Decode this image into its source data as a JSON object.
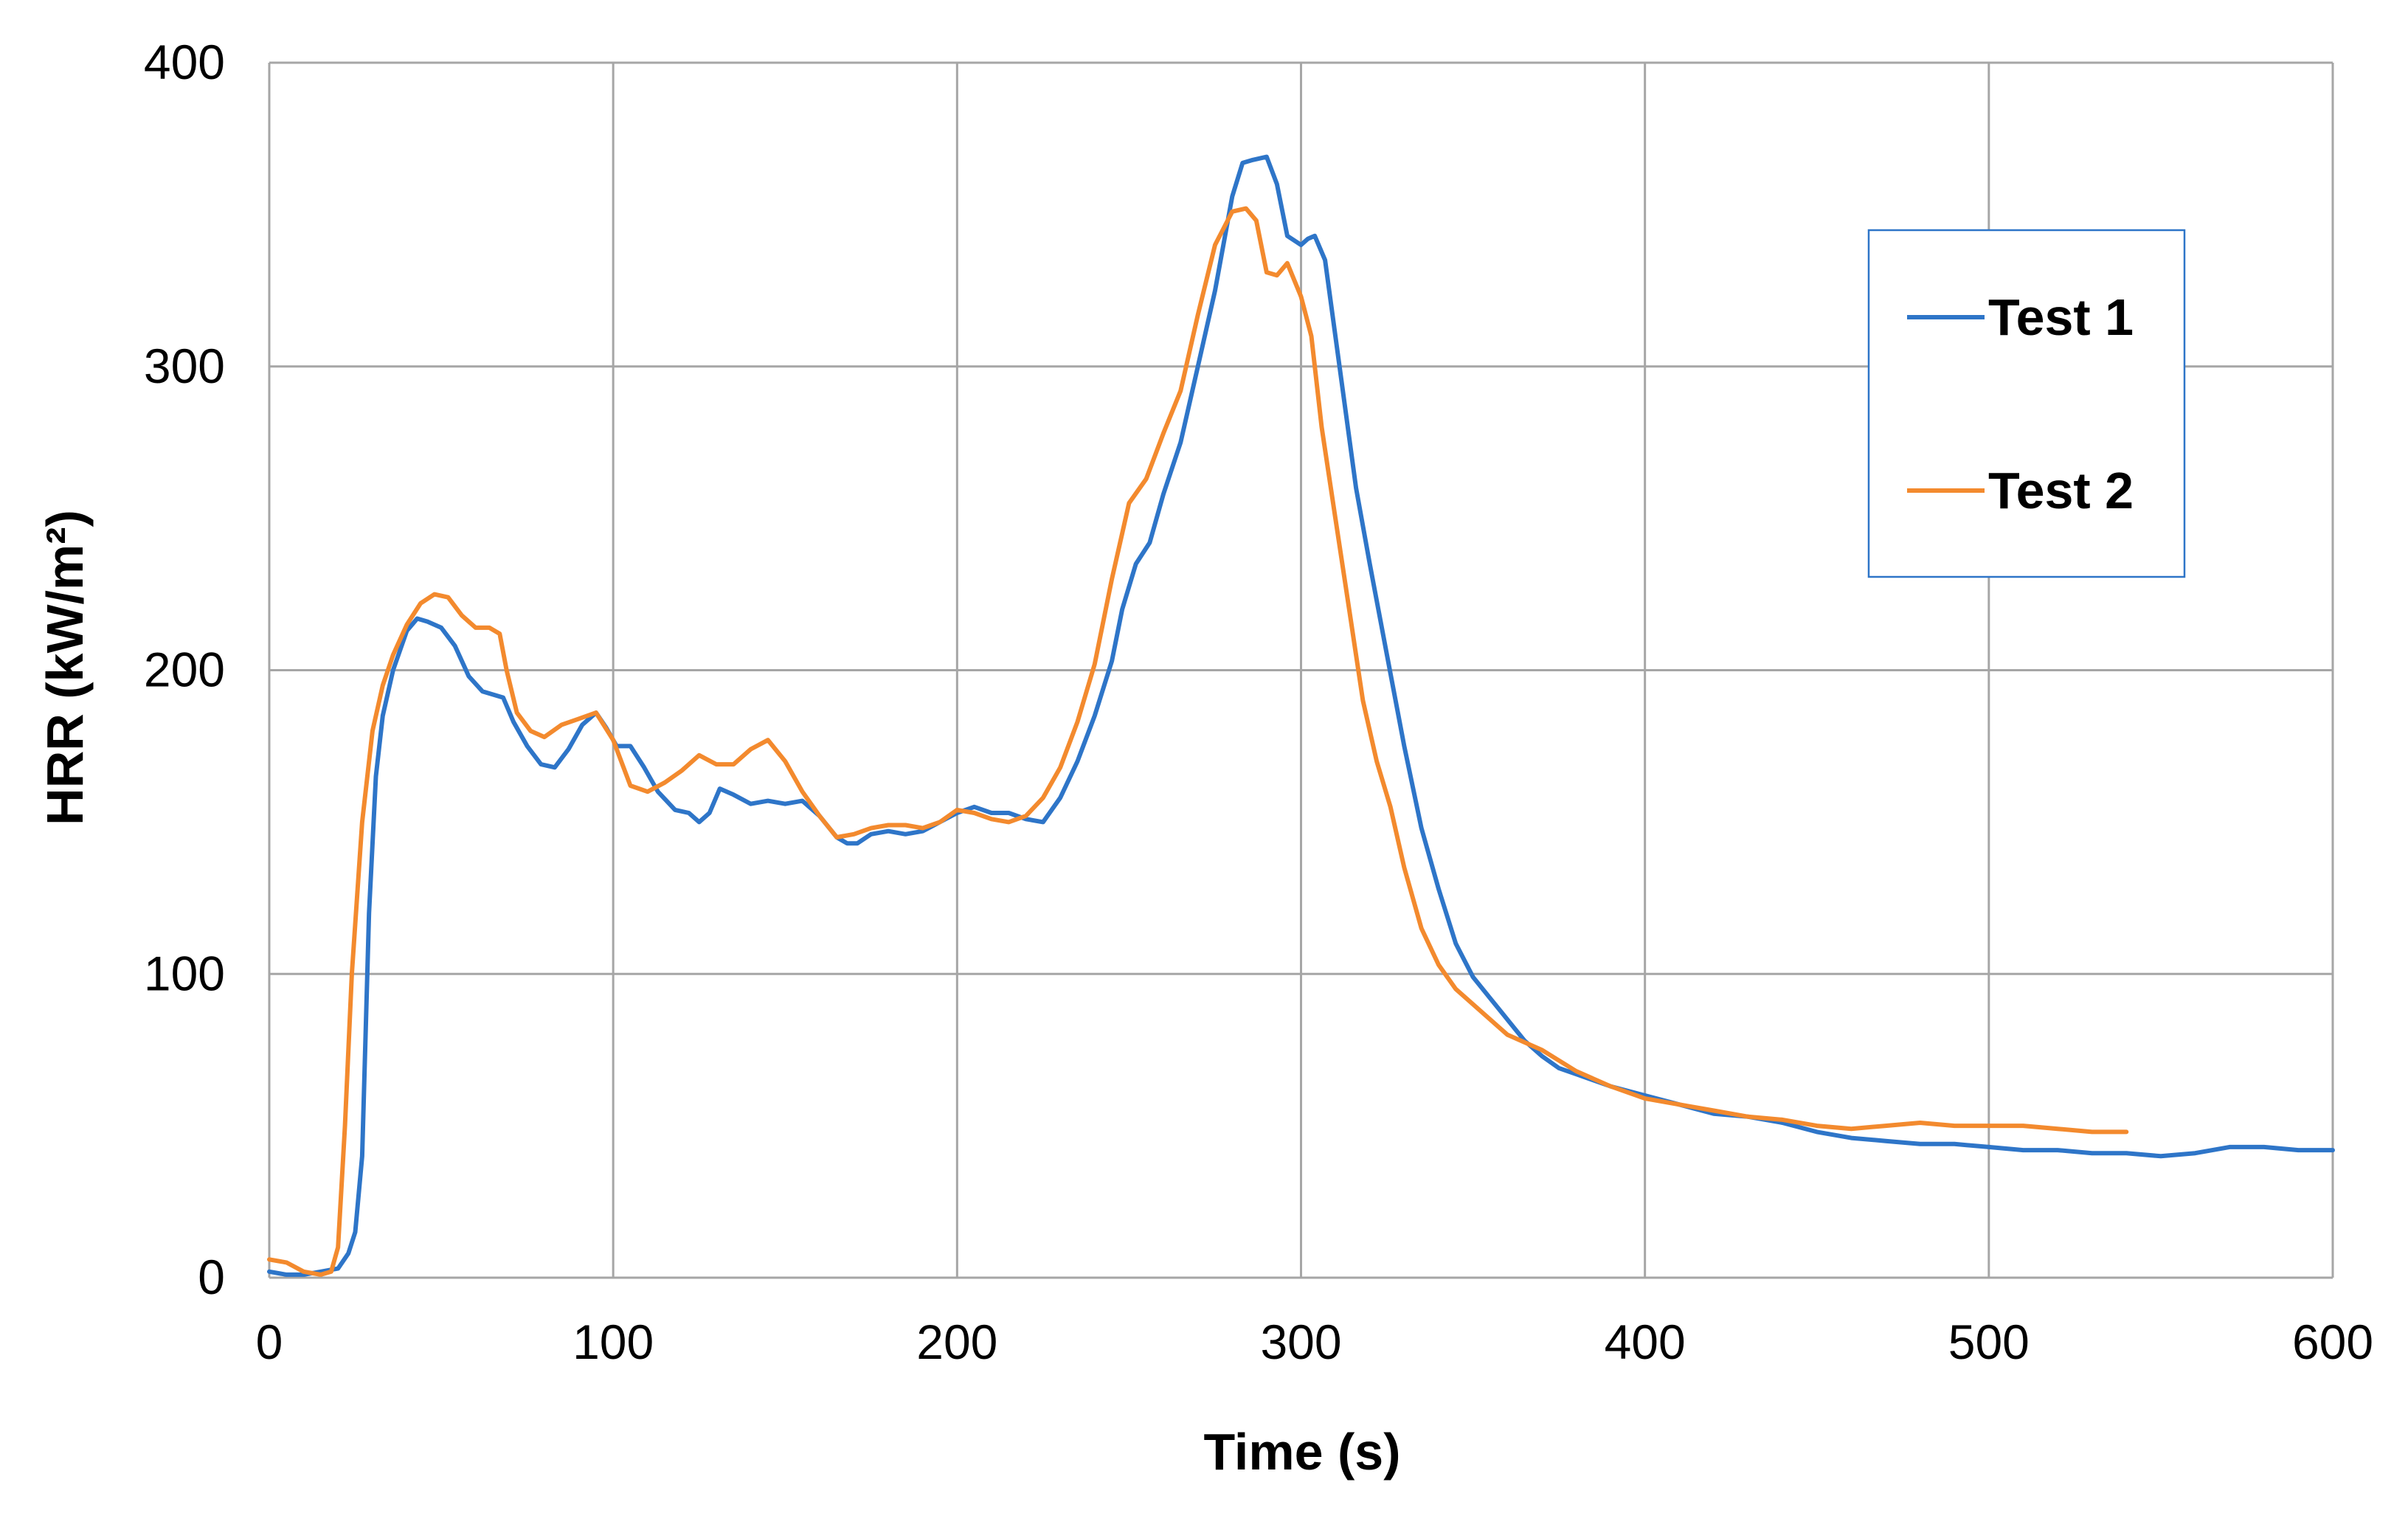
{
  "chart_data": {
    "type": "line",
    "title": "",
    "xlabel": "Time (s)",
    "ylabel": "HRR (kW/m²)",
    "xlim": [
      0,
      600
    ],
    "ylim": [
      0,
      400
    ],
    "xticks": [
      0,
      100,
      200,
      300,
      400,
      500,
      600
    ],
    "yticks": [
      0,
      100,
      200,
      300,
      400
    ],
    "x_tick_labels": [
      "0",
      "100",
      "200",
      "300",
      "400",
      "500",
      "600"
    ],
    "y_tick_labels": [
      "0",
      "100",
      "200",
      "300",
      "400"
    ],
    "grid": true,
    "legend_position": "top-right",
    "series": [
      {
        "name": "Test 1",
        "color": "#2e75c8",
        "points": [
          [
            0,
            2
          ],
          [
            5,
            1
          ],
          [
            10,
            1
          ],
          [
            15,
            2
          ],
          [
            20,
            3
          ],
          [
            23,
            8
          ],
          [
            25,
            15
          ],
          [
            27,
            40
          ],
          [
            29,
            120
          ],
          [
            31,
            165
          ],
          [
            33,
            185
          ],
          [
            36,
            200
          ],
          [
            40,
            213
          ],
          [
            43,
            217
          ],
          [
            46,
            216
          ],
          [
            50,
            214
          ],
          [
            54,
            208
          ],
          [
            58,
            198
          ],
          [
            62,
            193
          ],
          [
            68,
            191
          ],
          [
            71,
            183
          ],
          [
            75,
            175
          ],
          [
            79,
            169
          ],
          [
            83,
            168
          ],
          [
            87,
            174
          ],
          [
            91,
            182
          ],
          [
            95,
            186
          ],
          [
            98,
            181
          ],
          [
            101,
            175
          ],
          [
            105,
            175
          ],
          [
            109,
            168
          ],
          [
            113,
            160
          ],
          [
            118,
            154
          ],
          [
            122,
            153
          ],
          [
            125,
            150
          ],
          [
            128,
            153
          ],
          [
            131,
            161
          ],
          [
            135,
            159
          ],
          [
            140,
            156
          ],
          [
            145,
            157
          ],
          [
            150,
            156
          ],
          [
            155,
            157
          ],
          [
            160,
            152
          ],
          [
            165,
            145
          ],
          [
            168,
            143
          ],
          [
            171,
            143
          ],
          [
            175,
            146
          ],
          [
            180,
            147
          ],
          [
            185,
            146
          ],
          [
            190,
            147
          ],
          [
            195,
            150
          ],
          [
            200,
            153
          ],
          [
            205,
            155
          ],
          [
            210,
            153
          ],
          [
            215,
            153
          ],
          [
            220,
            151
          ],
          [
            225,
            150
          ],
          [
            230,
            158
          ],
          [
            235,
            170
          ],
          [
            240,
            185
          ],
          [
            245,
            203
          ],
          [
            248,
            220
          ],
          [
            252,
            235
          ],
          [
            256,
            242
          ],
          [
            260,
            258
          ],
          [
            265,
            275
          ],
          [
            270,
            300
          ],
          [
            275,
            325
          ],
          [
            280,
            356
          ],
          [
            283,
            367
          ],
          [
            286,
            368
          ],
          [
            290,
            369
          ],
          [
            293,
            360
          ],
          [
            296,
            343
          ],
          [
            300,
            340
          ],
          [
            302,
            342
          ],
          [
            304,
            343
          ],
          [
            307,
            335
          ],
          [
            310,
            310
          ],
          [
            313,
            285
          ],
          [
            316,
            260
          ],
          [
            320,
            235
          ],
          [
            325,
            205
          ],
          [
            330,
            175
          ],
          [
            335,
            148
          ],
          [
            340,
            128
          ],
          [
            345,
            110
          ],
          [
            350,
            99
          ],
          [
            355,
            92
          ],
          [
            360,
            85
          ],
          [
            365,
            78
          ],
          [
            370,
            73
          ],
          [
            375,
            69
          ],
          [
            380,
            67
          ],
          [
            390,
            63
          ],
          [
            400,
            60
          ],
          [
            410,
            57
          ],
          [
            420,
            54
          ],
          [
            430,
            53
          ],
          [
            440,
            51
          ],
          [
            450,
            48
          ],
          [
            460,
            46
          ],
          [
            470,
            45
          ],
          [
            480,
            44
          ],
          [
            490,
            44
          ],
          [
            500,
            43
          ],
          [
            510,
            42
          ],
          [
            520,
            42
          ],
          [
            530,
            41
          ],
          [
            540,
            41
          ],
          [
            550,
            40
          ],
          [
            560,
            41
          ],
          [
            570,
            43
          ],
          [
            580,
            43
          ],
          [
            590,
            42
          ],
          [
            600,
            42
          ]
        ]
      },
      {
        "name": "Test 2",
        "color": "#f38a2e",
        "points": [
          [
            0,
            6
          ],
          [
            5,
            5
          ],
          [
            10,
            2
          ],
          [
            15,
            1
          ],
          [
            18,
            2
          ],
          [
            20,
            10
          ],
          [
            22,
            50
          ],
          [
            24,
            100
          ],
          [
            27,
            150
          ],
          [
            30,
            180
          ],
          [
            33,
            195
          ],
          [
            36,
            205
          ],
          [
            40,
            215
          ],
          [
            44,
            222
          ],
          [
            48,
            225
          ],
          [
            52,
            224
          ],
          [
            56,
            218
          ],
          [
            60,
            214
          ],
          [
            64,
            214
          ],
          [
            67,
            212
          ],
          [
            69,
            200
          ],
          [
            72,
            186
          ],
          [
            76,
            180
          ],
          [
            80,
            178
          ],
          [
            85,
            182
          ],
          [
            90,
            184
          ],
          [
            95,
            186
          ],
          [
            100,
            177
          ],
          [
            105,
            162
          ],
          [
            110,
            160
          ],
          [
            115,
            163
          ],
          [
            120,
            167
          ],
          [
            125,
            172
          ],
          [
            130,
            169
          ],
          [
            135,
            169
          ],
          [
            140,
            174
          ],
          [
            145,
            177
          ],
          [
            150,
            170
          ],
          [
            155,
            160
          ],
          [
            160,
            152
          ],
          [
            165,
            145
          ],
          [
            170,
            146
          ],
          [
            175,
            148
          ],
          [
            180,
            149
          ],
          [
            185,
            149
          ],
          [
            190,
            148
          ],
          [
            195,
            150
          ],
          [
            200,
            154
          ],
          [
            205,
            153
          ],
          [
            210,
            151
          ],
          [
            215,
            150
          ],
          [
            220,
            152
          ],
          [
            225,
            158
          ],
          [
            230,
            168
          ],
          [
            235,
            183
          ],
          [
            240,
            202
          ],
          [
            245,
            230
          ],
          [
            250,
            255
          ],
          [
            255,
            263
          ],
          [
            260,
            278
          ],
          [
            265,
            292
          ],
          [
            270,
            317
          ],
          [
            275,
            340
          ],
          [
            280,
            351
          ],
          [
            284,
            352
          ],
          [
            287,
            348
          ],
          [
            290,
            331
          ],
          [
            293,
            330
          ],
          [
            296,
            334
          ],
          [
            300,
            323
          ],
          [
            303,
            310
          ],
          [
            306,
            280
          ],
          [
            310,
            250
          ],
          [
            314,
            220
          ],
          [
            318,
            190
          ],
          [
            322,
            170
          ],
          [
            326,
            155
          ],
          [
            330,
            135
          ],
          [
            335,
            115
          ],
          [
            340,
            103
          ],
          [
            345,
            95
          ],
          [
            350,
            90
          ],
          [
            355,
            85
          ],
          [
            360,
            80
          ],
          [
            370,
            75
          ],
          [
            380,
            68
          ],
          [
            390,
            63
          ],
          [
            400,
            59
          ],
          [
            410,
            57
          ],
          [
            420,
            55
          ],
          [
            430,
            53
          ],
          [
            440,
            52
          ],
          [
            450,
            50
          ],
          [
            460,
            49
          ],
          [
            470,
            50
          ],
          [
            480,
            51
          ],
          [
            490,
            50
          ],
          [
            500,
            50
          ],
          [
            510,
            50
          ],
          [
            520,
            49
          ],
          [
            530,
            48
          ],
          [
            540,
            48
          ]
        ]
      }
    ]
  }
}
